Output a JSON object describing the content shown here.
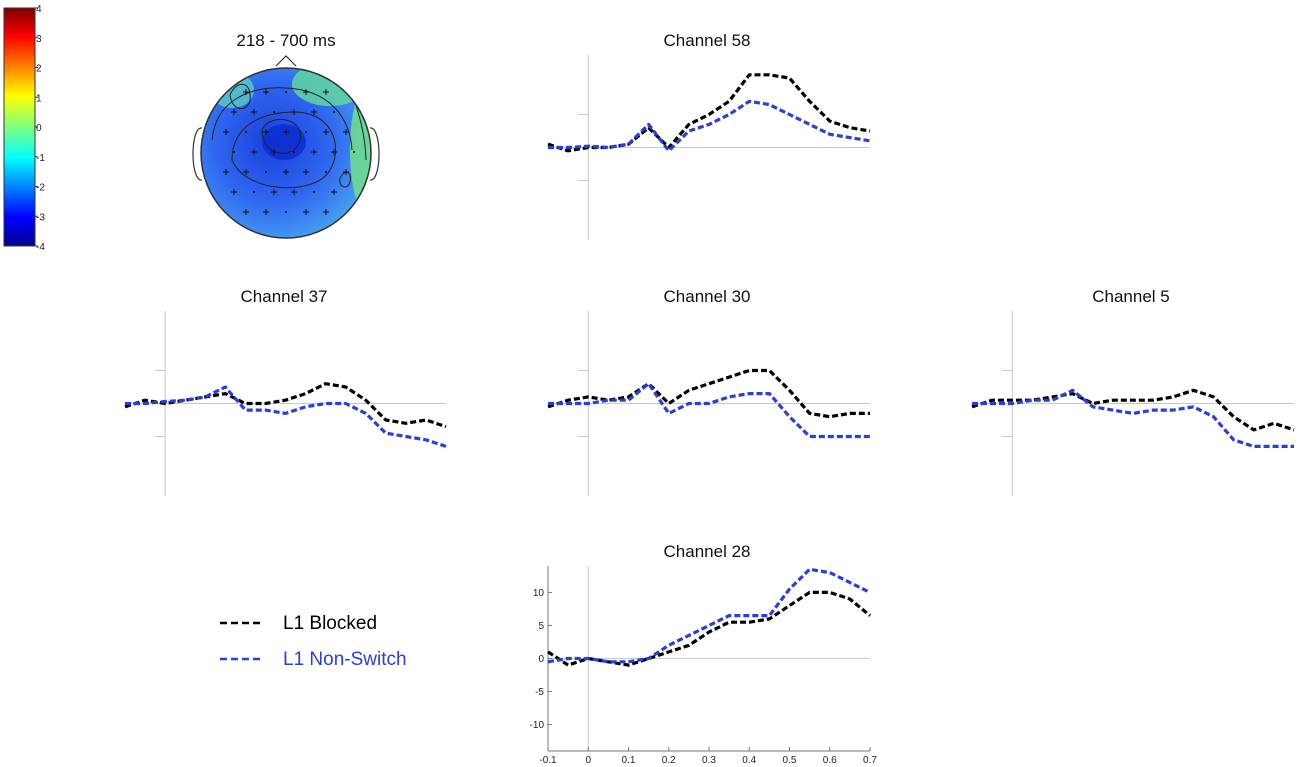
{
  "figure": {
    "topomap_title": "218 - 700 ms",
    "colorbar_ticks": [
      "4",
      "3",
      "2",
      "1",
      "0",
      "-1",
      "-2",
      "-3",
      "-4"
    ],
    "colors": {
      "blocked": "#000000",
      "nonswitch": "#2a3fd6",
      "axis": "#c8c8c8"
    }
  },
  "legend": [
    {
      "label": "L1 Blocked",
      "color": "#000000"
    },
    {
      "label": "L1 Non-Switch",
      "color": "#2a3fd6"
    }
  ],
  "chart_data": [
    {
      "type": "line",
      "title": "Channel 58",
      "x": [
        -0.1,
        -0.05,
        0,
        0.05,
        0.1,
        0.15,
        0.2,
        0.25,
        0.3,
        0.35,
        0.4,
        0.45,
        0.5,
        0.55,
        0.6,
        0.65,
        0.7
      ],
      "series": [
        {
          "name": "L1 Blocked",
          "values": [
            0.5,
            -0.5,
            0,
            0,
            0.5,
            3,
            0,
            3.5,
            5,
            7,
            11,
            11,
            10.5,
            7,
            4,
            3,
            2.5
          ]
        },
        {
          "name": "L1 Non-Switch",
          "values": [
            0,
            0,
            0.2,
            0,
            0.5,
            3.5,
            -0.5,
            2.5,
            3.5,
            5,
            7,
            6.5,
            5,
            3.5,
            2,
            1.5,
            1
          ]
        }
      ],
      "ylim": [
        14,
        -14
      ],
      "xlim": [
        -0.1,
        0.7
      ],
      "show_tick_labels": false
    },
    {
      "type": "line",
      "title": "Channel 37",
      "x": [
        -0.1,
        -0.05,
        0,
        0.05,
        0.1,
        0.15,
        0.2,
        0.25,
        0.3,
        0.35,
        0.4,
        0.45,
        0.5,
        0.55,
        0.6,
        0.65,
        0.7
      ],
      "series": [
        {
          "name": "L1 Blocked",
          "values": [
            -0.5,
            0.5,
            0,
            0.5,
            1,
            1.5,
            0,
            0,
            0.5,
            1.5,
            3,
            2.5,
            0.5,
            -2.5,
            -3,
            -2.5,
            -3.5
          ]
        },
        {
          "name": "L1 Non-Switch",
          "values": [
            0,
            0,
            0.3,
            0.5,
            1,
            2.5,
            -1,
            -1,
            -1.5,
            -0.5,
            0,
            0,
            -1.5,
            -4.5,
            -5,
            -5.5,
            -6.5
          ]
        }
      ],
      "ylim": [
        14,
        -14
      ],
      "xlim": [
        -0.1,
        0.7
      ],
      "show_tick_labels": false
    },
    {
      "type": "line",
      "title": "Channel 30",
      "x": [
        -0.1,
        -0.05,
        0,
        0.05,
        0.1,
        0.15,
        0.2,
        0.25,
        0.3,
        0.35,
        0.4,
        0.45,
        0.5,
        0.55,
        0.6,
        0.65,
        0.7
      ],
      "series": [
        {
          "name": "L1 Blocked",
          "values": [
            -0.5,
            0.5,
            1,
            0.5,
            1,
            3,
            0,
            2,
            3,
            4,
            5,
            5,
            2,
            -1.5,
            -2,
            -1.5,
            -1.5
          ]
        },
        {
          "name": "L1 Non-Switch",
          "values": [
            0,
            0,
            0,
            0.5,
            0.5,
            3,
            -1.5,
            0,
            0,
            1,
            1.5,
            1.5,
            -2,
            -5,
            -5,
            -5,
            -5
          ]
        }
      ],
      "ylim": [
        14,
        -14
      ],
      "xlim": [
        -0.1,
        0.7
      ],
      "show_tick_labels": false
    },
    {
      "type": "line",
      "title": "Channel 5",
      "x": [
        -0.1,
        -0.05,
        0,
        0.05,
        0.1,
        0.15,
        0.2,
        0.25,
        0.3,
        0.35,
        0.4,
        0.45,
        0.5,
        0.55,
        0.6,
        0.65,
        0.7
      ],
      "series": [
        {
          "name": "L1 Blocked",
          "values": [
            -0.5,
            0.5,
            0.5,
            0.5,
            1,
            1.5,
            0,
            0.5,
            0.5,
            0.5,
            1,
            2,
            1,
            -2,
            -4,
            -3,
            -4
          ]
        },
        {
          "name": "L1 Non-Switch",
          "values": [
            0,
            0,
            0,
            0.5,
            0.5,
            2,
            -0.5,
            -1,
            -1.5,
            -1,
            -1,
            -0.5,
            -2,
            -5.5,
            -6.5,
            -6.5,
            -6.5
          ]
        }
      ],
      "ylim": [
        14,
        -14
      ],
      "xlim": [
        -0.1,
        0.7
      ],
      "show_tick_labels": false
    },
    {
      "type": "line",
      "title": "Channel 28",
      "x": [
        -0.1,
        -0.05,
        0,
        0.05,
        0.1,
        0.15,
        0.2,
        0.25,
        0.3,
        0.35,
        0.4,
        0.45,
        0.5,
        0.55,
        0.6,
        0.65,
        0.7
      ],
      "series": [
        {
          "name": "L1 Blocked",
          "values": [
            1,
            -1,
            0,
            -0.5,
            -1,
            0,
            1,
            2,
            4,
            5.5,
            5.5,
            6,
            8,
            10,
            10,
            9,
            6.5
          ]
        },
        {
          "name": "L1 Non-Switch",
          "values": [
            -0.5,
            0,
            0,
            -0.5,
            -0.5,
            0,
            2,
            3.5,
            5,
            6.5,
            6.5,
            6.5,
            10.5,
            13.5,
            13,
            11.5,
            10
          ]
        }
      ],
      "ylim": [
        14,
        -14
      ],
      "xlim": [
        -0.1,
        0.7
      ],
      "xticks": [
        -0.1,
        0,
        0.1,
        0.2,
        0.3,
        0.4,
        0.5,
        0.6,
        0.7
      ],
      "xtick_labels": [
        "-0.1",
        "0",
        "0.1",
        "0.2",
        "0.3",
        "0.4",
        "0.5",
        "0.6",
        "0.7"
      ],
      "yticks": [
        -10,
        -5,
        0,
        5,
        10
      ],
      "ytick_labels": [
        "-10",
        "-5",
        "0",
        "5",
        "10"
      ],
      "show_tick_labels": true
    }
  ]
}
